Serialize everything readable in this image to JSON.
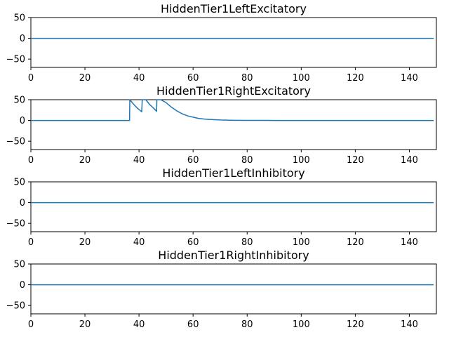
{
  "figure": {
    "line_color": "#1f77b4"
  },
  "chart_data": [
    {
      "type": "line",
      "title": "HiddenTier1LeftExcitatory",
      "xlim": [
        0,
        150
      ],
      "ylim": [
        -70,
        50
      ],
      "xticks": [
        0,
        20,
        40,
        60,
        80,
        100,
        120,
        140
      ],
      "xtick_labels": [
        "0",
        "20",
        "40",
        "60",
        "80",
        "100",
        "120",
        "140"
      ],
      "yticks": [
        50,
        0,
        -50
      ],
      "ytick_labels": [
        "50",
        "0",
        "−50"
      ],
      "grid": false,
      "series": [
        {
          "x": [
            0,
            149
          ],
          "y": [
            0,
            0
          ]
        }
      ]
    },
    {
      "type": "line",
      "title": "HiddenTier1RightExcitatory",
      "xlim": [
        0,
        150
      ],
      "ylim": [
        -70,
        50
      ],
      "xticks": [
        0,
        20,
        40,
        60,
        80,
        100,
        120,
        140
      ],
      "xtick_labels": [
        "0",
        "20",
        "40",
        "60",
        "80",
        "100",
        "120",
        "140"
      ],
      "yticks": [
        50,
        0,
        -50
      ],
      "ytick_labels": [
        "50",
        "0",
        "−50"
      ],
      "grid": false,
      "series": [
        {
          "x": [
            0,
            36.5,
            36.6,
            38,
            39.5,
            41,
            41.2,
            41.3,
            42.5,
            44,
            45.5,
            46.5,
            46.6,
            47,
            48,
            50,
            52,
            54,
            56,
            58,
            60,
            62,
            64,
            66,
            70,
            75,
            80,
            90,
            149
          ],
          "y": [
            0,
            0,
            50,
            39,
            29,
            21,
            50,
            50,
            50,
            38,
            29,
            22,
            50,
            50,
            50,
            43,
            32,
            23,
            16,
            11,
            8,
            5,
            3.5,
            2.4,
            1.1,
            0.4,
            0.15,
            0.02,
            0
          ]
        }
      ]
    },
    {
      "type": "line",
      "title": "HiddenTier1LeftInhibitory",
      "xlim": [
        0,
        150
      ],
      "ylim": [
        -70,
        50
      ],
      "xticks": [
        0,
        20,
        40,
        60,
        80,
        100,
        120,
        140
      ],
      "xtick_labels": [
        "0",
        "20",
        "40",
        "60",
        "80",
        "100",
        "120",
        "140"
      ],
      "yticks": [
        50,
        0,
        -50
      ],
      "ytick_labels": [
        "50",
        "0",
        "−50"
      ],
      "grid": false,
      "series": [
        {
          "x": [
            0,
            149
          ],
          "y": [
            0,
            0
          ]
        }
      ]
    },
    {
      "type": "line",
      "title": "HiddenTier1RightInhibitory",
      "xlim": [
        0,
        150
      ],
      "ylim": [
        -70,
        50
      ],
      "xticks": [
        0,
        20,
        40,
        60,
        80,
        100,
        120,
        140
      ],
      "xtick_labels": [
        "0",
        "20",
        "40",
        "60",
        "80",
        "100",
        "120",
        "140"
      ],
      "yticks": [
        50,
        0,
        -50
      ],
      "ytick_labels": [
        "50",
        "0",
        "−50"
      ],
      "grid": false,
      "series": [
        {
          "x": [
            0,
            149
          ],
          "y": [
            0,
            0
          ]
        }
      ]
    }
  ]
}
